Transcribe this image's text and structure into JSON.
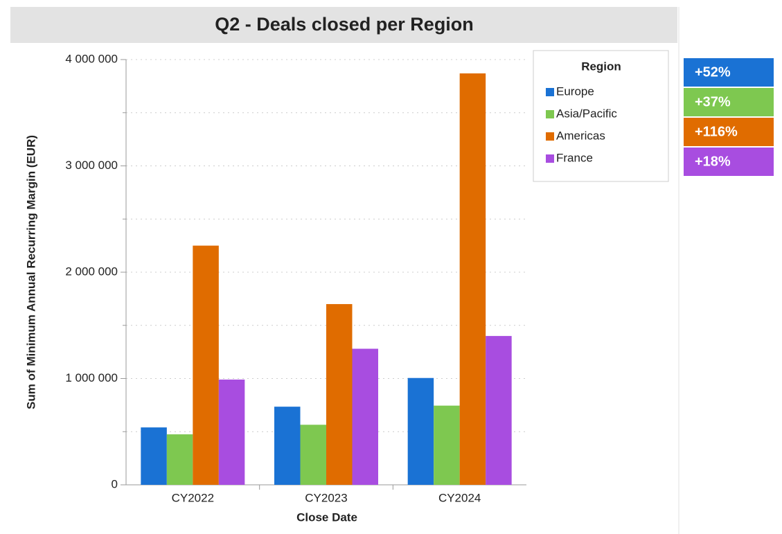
{
  "chart_data": {
    "type": "bar",
    "title": "Q2 - Deals closed per Region",
    "x_label": "Close Date",
    "y_label": "Sum of Minimum Annual Recurring Margin (EUR)",
    "categories": [
      "CY2022",
      "CY2023",
      "CY2024"
    ],
    "series": [
      {
        "name": "Europe",
        "color": "#1a72d4",
        "values": [
          540000,
          735000,
          1005000
        ]
      },
      {
        "name": "Asia/Pacific",
        "color": "#7ec850",
        "values": [
          475000,
          565000,
          745000
        ]
      },
      {
        "name": "Americas",
        "color": "#e06c00",
        "values": [
          2250000,
          1700000,
          3870000
        ]
      },
      {
        "name": "France",
        "color": "#a84de0",
        "values": [
          990000,
          1280000,
          1400000
        ]
      }
    ],
    "legend_title": "Region",
    "ylim": [
      0,
      4000000
    ],
    "yticks": [
      {
        "value": 0,
        "label": "0"
      },
      {
        "value": 1000000,
        "label": "1 000 000"
      },
      {
        "value": 2000000,
        "label": "2 000 000"
      },
      {
        "value": 3000000,
        "label": "3 000 000"
      },
      {
        "value": 4000000,
        "label": "4 000 000"
      }
    ],
    "minor_yticks": [
      500000,
      1500000,
      2500000,
      3500000
    ],
    "grid": true
  },
  "badges": [
    {
      "text": "+52%",
      "color": "#1a72d4"
    },
    {
      "text": "+37%",
      "color": "#7ec850"
    },
    {
      "text": "+116%",
      "color": "#e06c00"
    },
    {
      "text": "+18%",
      "color": "#a84de0"
    }
  ]
}
